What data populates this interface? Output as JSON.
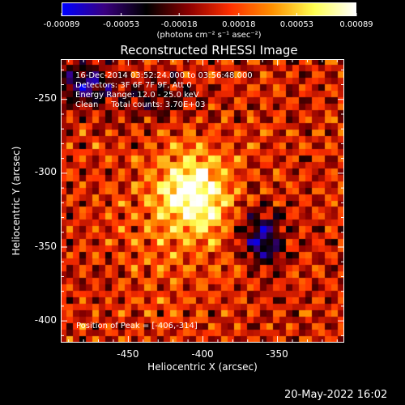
{
  "chart_data": {
    "type": "heatmap",
    "title": "Reconstructed RHESSI Image",
    "xlabel": "Heliocentric X (arcsec)",
    "ylabel": "Heliocentric Y (arcsec)",
    "xlim": [
      -495,
      -305
    ],
    "ylim": [
      -415,
      -223
    ],
    "xticks": [
      "-450",
      "-400",
      "-350"
    ],
    "xtick_values": [
      -450,
      -400,
      -350
    ],
    "yticks": [
      "-250",
      "-300",
      "-350",
      "-400"
    ],
    "ytick_values": [
      -250,
      -300,
      -350,
      -400
    ],
    "colorbar": {
      "ticks": [
        "-0.00089",
        "-0.00053",
        "-0.00018",
        "0.00018",
        "0.00053",
        "0.00089"
      ],
      "tick_values": [
        -0.00089,
        -0.00053,
        -0.00018,
        0.00018,
        0.00053,
        0.00089
      ],
      "range": [
        -0.00089,
        0.00089
      ],
      "unit": "(photons cm⁻² s⁻¹ asec⁻²)",
      "colors": [
        "#0000ff",
        "#3a0080",
        "#000000",
        "#8b0000",
        "#ff3000",
        "#ff9000",
        "#ffff50",
        "#ffffff"
      ]
    },
    "peak": [
      -406,
      -314
    ],
    "annotations": [
      "16-Dec-2014 03:52:24.000 to 03:56:48.000",
      "Detectors: 3F 6F 7F 9F, Att 0",
      "Energy Range: 12.0 - 25.0 keV",
      "Clean     Total counts: 3.70E+03"
    ],
    "peak_label": "Position of Peak = [-406,-314]"
  },
  "footer": {
    "date": "20-May-2022 16:02"
  }
}
